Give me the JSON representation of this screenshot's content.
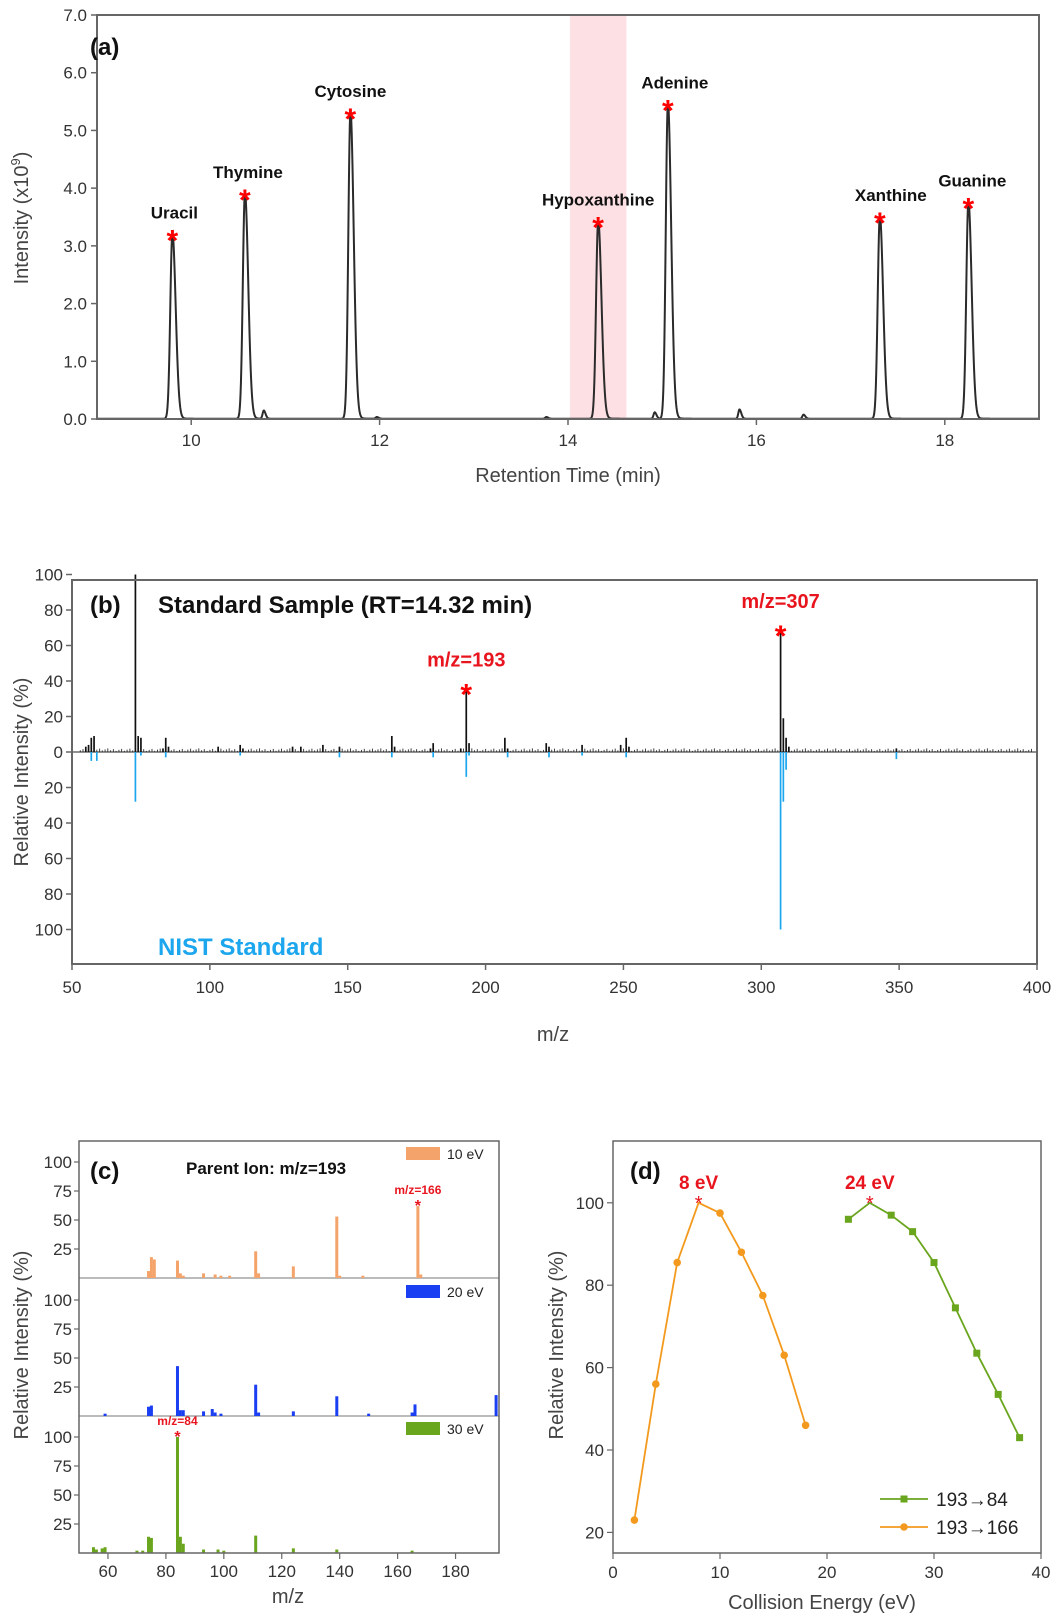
{
  "chart_data": [
    {
      "type": "line",
      "panel_label": "(a)",
      "xlabel": "Retention Time (min)",
      "ylabel": "Intensity (x10",
      "ylabel_sup": "9",
      "ylabel_end": ")",
      "xlim": [
        9.0,
        19.0
      ],
      "ylim": [
        0.0,
        7.0
      ],
      "xticks": [
        10,
        12,
        14,
        16,
        18
      ],
      "yticks": [
        "0.0",
        "1.0",
        "2.0",
        "3.0",
        "4.0",
        "5.0",
        "6.0",
        "7.0"
      ],
      "highlight_range": [
        14.02,
        14.62
      ],
      "peaks": [
        {
          "name": "Uracil",
          "rt": 9.8,
          "height": 3.2,
          "starred": true
        },
        {
          "name": "Thymine",
          "rt": 10.57,
          "height": 3.9,
          "starred": true
        },
        {
          "name": "Cytosine",
          "rt": 11.69,
          "height": 5.3,
          "starred": true
        },
        {
          "name": "Hypoxanthine",
          "rt": 14.32,
          "height": 3.42,
          "starred": true
        },
        {
          "name": "Adenine",
          "rt": 15.06,
          "height": 5.45,
          "starred": true
        },
        {
          "name": "Xanthine",
          "rt": 17.31,
          "height": 3.5,
          "starred": true
        },
        {
          "name": "Guanine",
          "rt": 18.25,
          "height": 3.75,
          "starred": true
        }
      ],
      "minor_peaks": [
        {
          "rt": 10.77,
          "height": 0.14
        },
        {
          "rt": 11.97,
          "height": 0.03
        },
        {
          "rt": 13.77,
          "height": 0.03
        },
        {
          "rt": 14.92,
          "height": 0.11
        },
        {
          "rt": 15.82,
          "height": 0.16
        },
        {
          "rt": 16.5,
          "height": 0.07
        }
      ],
      "peak_marker": "*"
    },
    {
      "type": "bar",
      "panel_label": "(b)",
      "title": "Standard Sample (RT=14.32 min)",
      "mirror_label": "NIST Standard",
      "xlabel": "m/z",
      "ylabel": "Relative Intensity (%)",
      "xlim": [
        50,
        400
      ],
      "xticks": [
        50,
        100,
        150,
        200,
        250,
        300,
        350,
        400
      ],
      "yticks_top": [
        "100",
        "80",
        "60",
        "40",
        "20",
        "0"
      ],
      "yticks_bottom": [
        "20",
        "40",
        "60",
        "80",
        "100"
      ],
      "series": [
        {
          "name": "Standard Sample",
          "mz": [
            55,
            56,
            57,
            58,
            73,
            74,
            75,
            83,
            84,
            85,
            103,
            111,
            112,
            130,
            133,
            141,
            147,
            166,
            167,
            180,
            181,
            191,
            193,
            194,
            207,
            208,
            222,
            223,
            235,
            249,
            251,
            252,
            307,
            308,
            309,
            310,
            349
          ],
          "values": [
            3,
            4,
            8,
            9,
            100,
            9,
            8,
            2,
            8,
            3,
            3,
            4,
            2,
            3,
            3,
            4,
            3,
            9,
            3,
            2,
            5,
            2,
            37,
            5,
            8,
            2,
            5,
            3,
            4,
            4,
            8,
            3,
            70,
            19,
            8,
            3,
            2
          ]
        },
        {
          "name": "NIST Standard",
          "mz": [
            57,
            59,
            73,
            75,
            84,
            111,
            147,
            166,
            181,
            193,
            194,
            208,
            223,
            235,
            251,
            307,
            308,
            309,
            349
          ],
          "values": [
            5,
            5,
            28,
            2,
            3,
            2,
            3,
            3,
            3,
            14,
            2,
            3,
            3,
            2,
            3,
            100,
            28,
            10,
            4
          ]
        }
      ],
      "annotations": [
        {
          "text": "m/z=193",
          "mz": 193,
          "value": 37
        },
        {
          "text": "m/z=307",
          "mz": 307,
          "value": 70
        }
      ],
      "peak_marker": "*"
    },
    {
      "type": "bar",
      "panel_label": "(c)",
      "title": "Parent Ion: m/z=193",
      "xlabel": "m/z",
      "ylabel": "Relative Intensity (%)",
      "xlim": [
        50,
        195
      ],
      "xticks": [
        60,
        80,
        100,
        120,
        140,
        160,
        180
      ],
      "yticks": [
        "25",
        "50",
        "75",
        "100"
      ],
      "series": [
        {
          "name": "10 eV",
          "color": "#f4a46a",
          "annotation": "m/z=166",
          "mz": [
            74,
            75,
            76,
            84,
            85,
            86,
            93,
            97,
            99,
            102,
            111,
            112,
            124,
            139,
            140,
            148,
            167,
            168
          ],
          "values": [
            6,
            18,
            16,
            15,
            4,
            2,
            4,
            3,
            2,
            2,
            23,
            4,
            10,
            53,
            2,
            2,
            62,
            3
          ]
        },
        {
          "name": "20 eV",
          "color": "#1a3ef2",
          "annotation": "",
          "mz": [
            59,
            74,
            75,
            84,
            85,
            86,
            93,
            96,
            97,
            99,
            111,
            112,
            124,
            139,
            150,
            165,
            166,
            194
          ],
          "values": [
            2,
            8,
            9,
            43,
            5,
            5,
            4,
            6,
            3,
            2,
            27,
            3,
            4,
            17,
            2,
            3,
            10,
            18
          ]
        },
        {
          "name": "30 eV",
          "color": "#6aa51e",
          "annotation": "m/z=84",
          "mz": [
            55,
            56,
            58,
            59,
            70,
            72,
            74,
            75,
            84,
            85,
            86,
            93,
            98,
            100,
            111,
            124,
            139,
            165
          ],
          "values": [
            5,
            3,
            4,
            5,
            2,
            2,
            14,
            13,
            100,
            14,
            8,
            3,
            3,
            2,
            15,
            4,
            3,
            2
          ]
        }
      ]
    },
    {
      "type": "line",
      "panel_label": "(d)",
      "xlabel": "Collision Energy (eV)",
      "ylabel": "Relative Intensity (%)",
      "xlim": [
        0,
        40
      ],
      "ylim": [
        15,
        115
      ],
      "xticks": [
        "0",
        "10",
        "20",
        "30",
        "40"
      ],
      "yticks": [
        "20",
        "40",
        "60",
        "80",
        "100"
      ],
      "series": [
        {
          "name": "193→84",
          "color": "#6aa51e",
          "marker": "square",
          "peak_label": "24 eV",
          "x": [
            22,
            24,
            26,
            28,
            30,
            32,
            34,
            36,
            38
          ],
          "y": [
            96,
            100,
            97,
            93,
            85.5,
            74.5,
            63.5,
            53.5,
            43
          ]
        },
        {
          "name": "193→166",
          "color": "#f39a1e",
          "marker": "circle",
          "peak_label": "8 eV",
          "x": [
            2,
            4,
            6,
            8,
            10,
            12,
            14,
            16,
            18
          ],
          "y": [
            23,
            56,
            85.5,
            100,
            97.5,
            88,
            77.5,
            63,
            46
          ]
        }
      ]
    }
  ]
}
